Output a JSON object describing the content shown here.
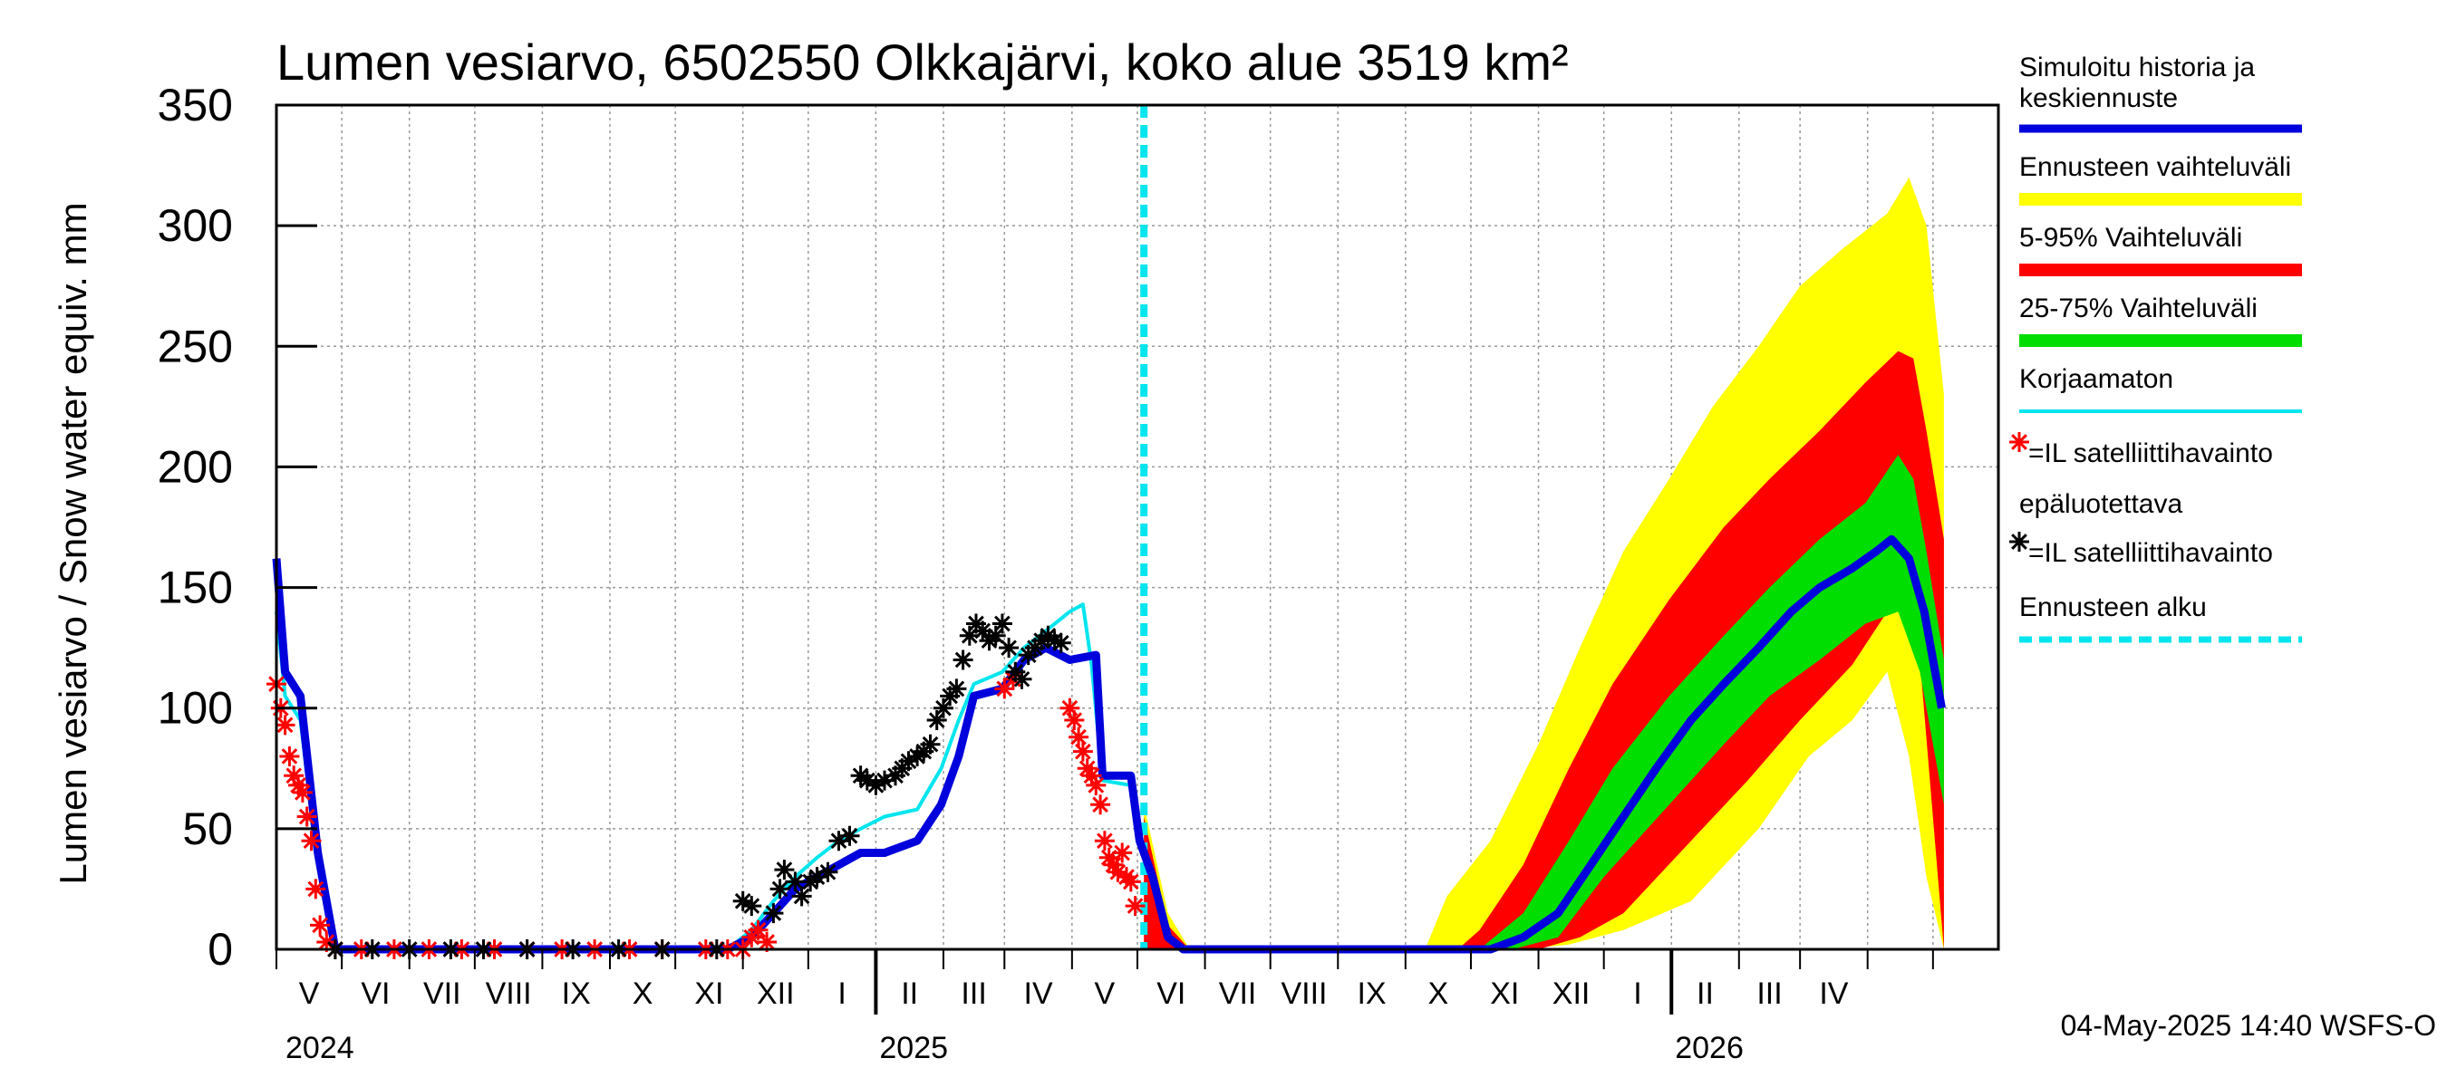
{
  "chart_data": {
    "type": "area",
    "title": "Lumen vesiarvo, 6502550 Olkkajärvi, koko alue 3519 km²",
    "ylabel": "Lumen vesiarvo / Snow water equiv.    mm",
    "ylim": [
      0,
      350
    ],
    "yticks": [
      "0",
      "50",
      "100",
      "150",
      "200",
      "250",
      "300",
      "350"
    ],
    "grid": true,
    "legend_position": "right",
    "x_start": "2024-04-01",
    "x_end": "2026-05-31",
    "forecast_start": "2025-05-04",
    "months": [
      "V",
      "VI",
      "VII",
      "VIII",
      "IX",
      "X",
      "XI",
      "XII",
      "I",
      "II",
      "III",
      "IV",
      "V",
      "VI",
      "VII",
      "VIII",
      "IX",
      "X",
      "XI",
      "XII",
      "I",
      "II",
      "III",
      "IV"
    ],
    "years": [
      "2024",
      "2025",
      "2026"
    ],
    "colors": {
      "simulated": "#0000dd",
      "yellow": "#ffff00",
      "red": "#ff0000",
      "green": "#00dd00",
      "uncorrected": "#00e5ee",
      "sat_unreliable": "#ff0000",
      "sat": "#000000",
      "forecast_line": "#00e5ee"
    },
    "legend": [
      "Simuloitu historia ja keskiennuste",
      "Ennusteen vaihteluväli",
      "5-95% Vaihteluväli",
      "25-75% Vaihteluväli",
      "Korjaamaton",
      "=IL satelliittihavainto epäluotettava",
      "=IL satelliittihavainto",
      "Ennusteen alku"
    ],
    "series": [
      {
        "name": "Simuloitu historia ja keskiennuste",
        "points": [
          [
            "2024-04-01",
            162
          ],
          [
            "2024-04-05",
            115
          ],
          [
            "2024-04-12",
            105
          ],
          [
            "2024-04-20",
            40
          ],
          [
            "2024-04-28",
            0
          ],
          [
            "2024-10-25",
            0
          ],
          [
            "2024-11-05",
            5
          ],
          [
            "2024-11-15",
            15
          ],
          [
            "2024-11-25",
            25
          ],
          [
            "2024-12-05",
            30
          ],
          [
            "2024-12-15",
            35
          ],
          [
            "2024-12-25",
            40
          ],
          [
            "2025-01-05",
            40
          ],
          [
            "2025-01-20",
            45
          ],
          [
            "2025-01-31",
            60
          ],
          [
            "2025-02-08",
            80
          ],
          [
            "2025-02-15",
            105
          ],
          [
            "2025-02-28",
            108
          ],
          [
            "2025-03-10",
            120
          ],
          [
            "2025-03-20",
            125
          ],
          [
            "2025-03-31",
            120
          ],
          [
            "2025-04-12",
            122
          ],
          [
            "2025-04-15",
            72
          ],
          [
            "2025-04-28",
            72
          ],
          [
            "2025-05-02",
            45
          ],
          [
            "2025-05-08",
            30
          ],
          [
            "2025-05-15",
            5
          ],
          [
            "2025-05-22",
            0
          ],
          [
            "2025-10-10",
            0
          ],
          [
            "2025-10-25",
            5
          ],
          [
            "2025-11-10",
            15
          ],
          [
            "2025-11-25",
            35
          ],
          [
            "2025-12-10",
            55
          ],
          [
            "2025-12-25",
            75
          ],
          [
            "2026-01-10",
            95
          ],
          [
            "2026-01-25",
            110
          ],
          [
            "2026-02-10",
            125
          ],
          [
            "2026-02-25",
            140
          ],
          [
            "2026-03-10",
            150
          ],
          [
            "2026-03-25",
            158
          ],
          [
            "2026-04-05",
            165
          ],
          [
            "2026-04-12",
            170
          ],
          [
            "2026-04-20",
            162
          ],
          [
            "2026-04-27",
            140
          ],
          [
            "2026-05-05",
            100
          ]
        ]
      },
      {
        "name": "Korjaamaton",
        "points": [
          [
            "2024-04-01",
            140
          ],
          [
            "2024-04-05",
            105
          ],
          [
            "2024-04-12",
            95
          ],
          [
            "2024-04-20",
            35
          ],
          [
            "2024-04-28",
            0
          ],
          [
            "2024-10-25",
            0
          ],
          [
            "2024-11-05",
            8
          ],
          [
            "2024-11-15",
            20
          ],
          [
            "2024-11-25",
            30
          ],
          [
            "2024-12-05",
            38
          ],
          [
            "2024-12-15",
            45
          ],
          [
            "2024-12-25",
            50
          ],
          [
            "2025-01-05",
            55
          ],
          [
            "2025-01-20",
            58
          ],
          [
            "2025-01-31",
            75
          ],
          [
            "2025-02-08",
            95
          ],
          [
            "2025-02-15",
            110
          ],
          [
            "2025-02-28",
            115
          ],
          [
            "2025-03-10",
            125
          ],
          [
            "2025-03-20",
            132
          ],
          [
            "2025-03-31",
            140
          ],
          [
            "2025-04-06",
            143
          ],
          [
            "2025-04-10",
            118
          ],
          [
            "2025-04-15",
            70
          ],
          [
            "2025-04-28",
            68
          ],
          [
            "2025-05-04",
            40
          ]
        ]
      },
      {
        "name": "Ennusteen vaihteluväli",
        "upper": [
          [
            "2025-05-04",
            60
          ],
          [
            "2025-05-15",
            15
          ],
          [
            "2025-05-25",
            0
          ],
          [
            "2025-09-10",
            0
          ],
          [
            "2025-09-20",
            22
          ],
          [
            "2025-10-10",
            45
          ],
          [
            "2025-11-01",
            85
          ],
          [
            "2025-11-20",
            125
          ],
          [
            "2025-12-10",
            165
          ],
          [
            "2025-12-31",
            195
          ],
          [
            "2026-01-20",
            225
          ],
          [
            "2026-02-10",
            250
          ],
          [
            "2026-03-01",
            275
          ],
          [
            "2026-03-20",
            290
          ],
          [
            "2026-04-10",
            305
          ],
          [
            "2026-04-20",
            320
          ],
          [
            "2026-04-28",
            300
          ],
          [
            "2026-05-06",
            230
          ]
        ],
        "lower": [
          [
            "2025-05-04",
            0
          ],
          [
            "2025-10-25",
            0
          ],
          [
            "2025-11-15",
            2
          ],
          [
            "2025-12-10",
            8
          ],
          [
            "2026-01-10",
            20
          ],
          [
            "2026-02-10",
            50
          ],
          [
            "2026-03-05",
            80
          ],
          [
            "2026-03-25",
            95
          ],
          [
            "2026-04-10",
            115
          ],
          [
            "2026-04-20",
            80
          ],
          [
            "2026-04-28",
            30
          ],
          [
            "2026-05-06",
            0
          ]
        ]
      },
      {
        "name": "5-95% Vaihteluväli",
        "upper": [
          [
            "2025-05-04",
            55
          ],
          [
            "2025-05-15",
            10
          ],
          [
            "2025-05-25",
            0
          ],
          [
            "2025-09-25",
            0
          ],
          [
            "2025-10-05",
            8
          ],
          [
            "2025-10-25",
            35
          ],
          [
            "2025-11-15",
            75
          ],
          [
            "2025-12-05",
            110
          ],
          [
            "2025-12-31",
            145
          ],
          [
            "2026-01-25",
            175
          ],
          [
            "2026-02-15",
            195
          ],
          [
            "2026-03-10",
            215
          ],
          [
            "2026-03-31",
            235
          ],
          [
            "2026-04-15",
            248
          ],
          [
            "2026-04-22",
            245
          ],
          [
            "2026-04-28",
            215
          ],
          [
            "2026-05-06",
            170
          ]
        ],
        "lower": [
          [
            "2025-05-04",
            0
          ],
          [
            "2025-11-01",
            0
          ],
          [
            "2025-11-20",
            5
          ],
          [
            "2025-12-10",
            15
          ],
          [
            "2026-01-10",
            45
          ],
          [
            "2026-02-05",
            70
          ],
          [
            "2026-03-01",
            95
          ],
          [
            "2026-03-25",
            118
          ],
          [
            "2026-04-10",
            140
          ],
          [
            "2026-04-18",
            145
          ],
          [
            "2026-04-25",
            120
          ],
          [
            "2026-05-06",
            0
          ]
        ]
      },
      {
        "name": "25-75% Vaihteluväli",
        "upper": [
          [
            "2025-05-04",
            0
          ],
          [
            "2025-10-05",
            0
          ],
          [
            "2025-10-25",
            15
          ],
          [
            "2025-11-15",
            45
          ],
          [
            "2025-12-05",
            75
          ],
          [
            "2025-12-31",
            105
          ],
          [
            "2026-01-25",
            130
          ],
          [
            "2026-02-15",
            150
          ],
          [
            "2026-03-10",
            170
          ],
          [
            "2026-03-31",
            185
          ],
          [
            "2026-04-15",
            205
          ],
          [
            "2026-04-22",
            195
          ],
          [
            "2026-04-28",
            165
          ],
          [
            "2026-05-06",
            120
          ]
        ],
        "lower": [
          [
            "2025-05-04",
            0
          ],
          [
            "2025-10-20",
            0
          ],
          [
            "2025-11-10",
            5
          ],
          [
            "2025-12-01",
            30
          ],
          [
            "2025-12-31",
            60
          ],
          [
            "2026-01-25",
            85
          ],
          [
            "2026-02-15",
            105
          ],
          [
            "2026-03-10",
            120
          ],
          [
            "2026-03-31",
            135
          ],
          [
            "2026-04-15",
            140
          ],
          [
            "2026-04-25",
            115
          ],
          [
            "2026-05-06",
            60
          ]
        ]
      },
      {
        "name": "=IL satelliittihavainto epäluotettava",
        "points": [
          [
            "2024-04-01",
            110
          ],
          [
            "2024-04-03",
            100
          ],
          [
            "2024-04-05",
            93
          ],
          [
            "2024-04-07",
            80
          ],
          [
            "2024-04-09",
            72
          ],
          [
            "2024-04-11",
            68
          ],
          [
            "2024-04-13",
            65
          ],
          [
            "2024-04-15",
            55
          ],
          [
            "2024-04-17",
            45
          ],
          [
            "2024-04-19",
            25
          ],
          [
            "2024-04-21",
            10
          ],
          [
            "2024-04-24",
            3
          ],
          [
            "2024-04-28",
            0
          ],
          [
            "2024-05-10",
            0
          ],
          [
            "2024-05-25",
            0
          ],
          [
            "2024-06-10",
            0
          ],
          [
            "2024-06-25",
            0
          ],
          [
            "2024-07-10",
            0
          ],
          [
            "2024-07-25",
            0
          ],
          [
            "2024-08-10",
            0
          ],
          [
            "2024-08-25",
            0
          ],
          [
            "2024-09-10",
            0
          ],
          [
            "2024-09-25",
            0
          ],
          [
            "2024-10-15",
            0
          ],
          [
            "2024-10-25",
            0
          ],
          [
            "2024-11-01",
            0
          ],
          [
            "2024-11-05",
            5
          ],
          [
            "2024-11-08",
            8
          ],
          [
            "2024-11-12",
            3
          ],
          [
            "2025-03-01",
            108
          ],
          [
            "2025-03-05",
            112
          ],
          [
            "2025-03-31",
            100
          ],
          [
            "2025-04-02",
            95
          ],
          [
            "2025-04-04",
            88
          ],
          [
            "2025-04-06",
            82
          ],
          [
            "2025-04-08",
            75
          ],
          [
            "2025-04-10",
            72
          ],
          [
            "2025-04-12",
            68
          ],
          [
            "2025-04-14",
            60
          ],
          [
            "2025-04-16",
            45
          ],
          [
            "2025-04-18",
            38
          ],
          [
            "2025-04-20",
            35
          ],
          [
            "2025-04-22",
            32
          ],
          [
            "2025-04-24",
            40
          ],
          [
            "2025-04-26",
            30
          ],
          [
            "2025-04-28",
            28
          ],
          [
            "2025-04-30",
            18
          ]
        ]
      },
      {
        "name": "=IL satelliittihavainto",
        "points": [
          [
            "2024-04-28",
            0
          ],
          [
            "2024-05-15",
            0
          ],
          [
            "2024-06-01",
            0
          ],
          [
            "2024-06-20",
            0
          ],
          [
            "2024-07-05",
            0
          ],
          [
            "2024-07-25",
            0
          ],
          [
            "2024-08-15",
            0
          ],
          [
            "2024-09-05",
            0
          ],
          [
            "2024-09-25",
            0
          ],
          [
            "2024-10-20",
            0
          ],
          [
            "2024-11-01",
            20
          ],
          [
            "2024-11-05",
            18
          ],
          [
            "2024-11-15",
            15
          ],
          [
            "2024-11-18",
            25
          ],
          [
            "2024-11-20",
            33
          ],
          [
            "2024-11-25",
            28
          ],
          [
            "2024-11-28",
            22
          ],
          [
            "2024-12-02",
            28
          ],
          [
            "2024-12-05",
            30
          ],
          [
            "2024-12-10",
            32
          ],
          [
            "2024-12-15",
            45
          ],
          [
            "2024-12-20",
            47
          ],
          [
            "2024-12-25",
            72
          ],
          [
            "2024-12-28",
            70
          ],
          [
            "2025-01-01",
            68
          ],
          [
            "2025-01-05",
            70
          ],
          [
            "2025-01-10",
            72
          ],
          [
            "2025-01-13",
            75
          ],
          [
            "2025-01-16",
            78
          ],
          [
            "2025-01-20",
            80
          ],
          [
            "2025-01-23",
            82
          ],
          [
            "2025-01-26",
            85
          ],
          [
            "2025-01-29",
            95
          ],
          [
            "2025-02-01",
            100
          ],
          [
            "2025-02-04",
            105
          ],
          [
            "2025-02-07",
            108
          ],
          [
            "2025-02-10",
            120
          ],
          [
            "2025-02-13",
            130
          ],
          [
            "2025-02-16",
            135
          ],
          [
            "2025-02-19",
            132
          ],
          [
            "2025-02-22",
            128
          ],
          [
            "2025-02-25",
            130
          ],
          [
            "2025-02-28",
            135
          ],
          [
            "2025-03-03",
            125
          ],
          [
            "2025-03-06",
            115
          ],
          [
            "2025-03-09",
            112
          ],
          [
            "2025-03-12",
            122
          ],
          [
            "2025-03-15",
            125
          ],
          [
            "2025-03-18",
            128
          ],
          [
            "2025-03-21",
            130
          ],
          [
            "2025-03-24",
            128
          ],
          [
            "2025-03-27",
            127
          ]
        ]
      }
    ]
  },
  "timestamp": "04-May-2025 14:40 WSFS-O"
}
